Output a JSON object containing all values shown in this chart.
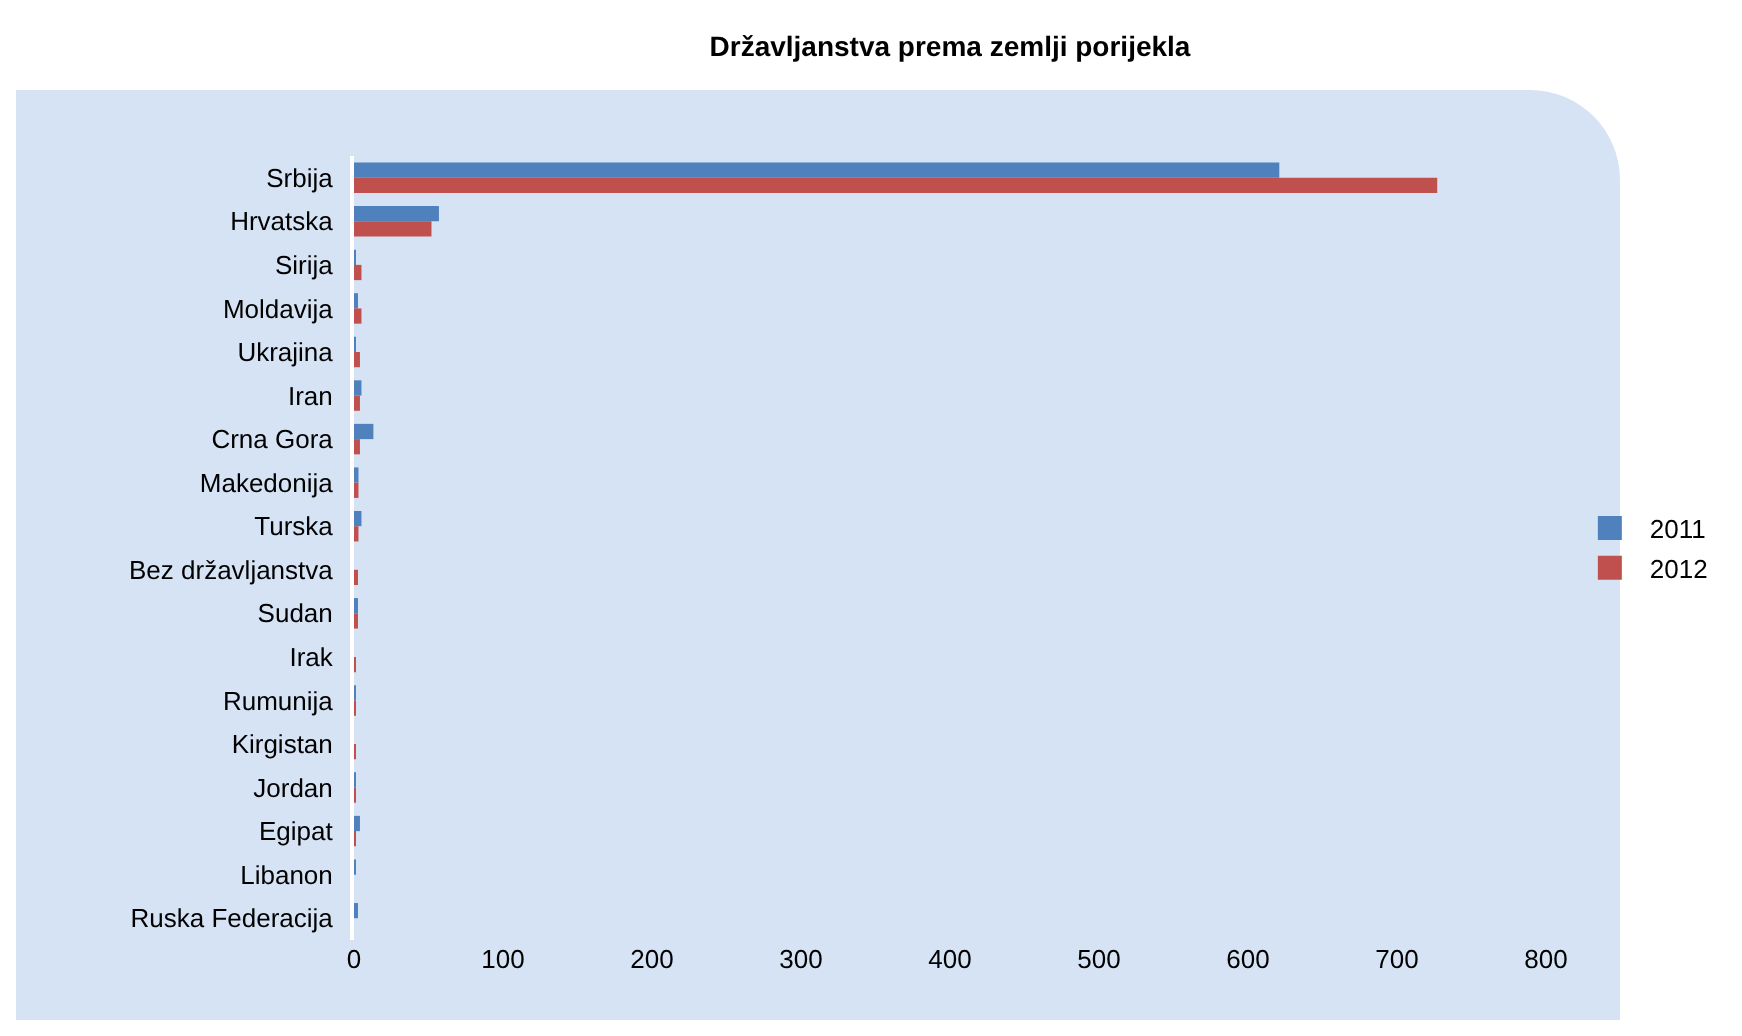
{
  "chart_data": {
    "type": "bar",
    "orientation": "horizontal",
    "title": "Državljanstva prema zemlji porijekla",
    "categories": [
      "Srbija",
      "Hrvatska",
      "Sirija",
      "Moldavija",
      "Ukrajina",
      "Iran",
      "Crna Gora",
      "Makedonija",
      "Turska",
      "Bez državljanstva",
      "Sudan",
      "Irak",
      "Rumunija",
      "Kirgistan",
      "Jordan",
      "Egipat",
      "Libanon",
      "Ruska Federacija"
    ],
    "series": [
      {
        "name": "2011",
        "color": "#4f81bd",
        "values": [
          621,
          57,
          1,
          2,
          1,
          5,
          13,
          3,
          5,
          0,
          2,
          0,
          1,
          0,
          1,
          4,
          1,
          2
        ]
      },
      {
        "name": "2012",
        "color": "#c0504d",
        "values": [
          727,
          52,
          5,
          5,
          4,
          4,
          4,
          3,
          3,
          2,
          2,
          1,
          1,
          1,
          1,
          1,
          0,
          0
        ]
      }
    ],
    "xlim": [
      0,
      800
    ],
    "xticks": [
      0,
      100,
      200,
      300,
      400,
      500,
      600,
      700,
      800
    ],
    "grid": false,
    "legend": "right"
  }
}
